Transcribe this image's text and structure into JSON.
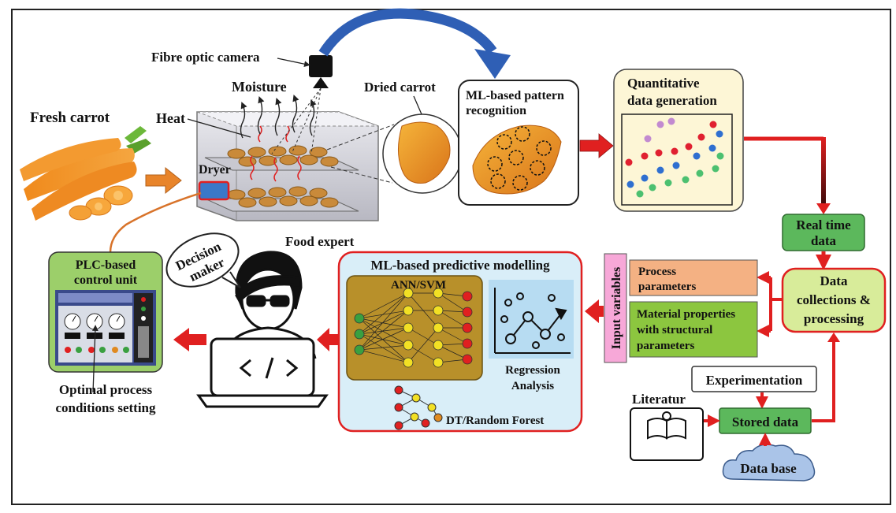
{
  "labels": {
    "fresh_carrot": "Fresh carrot",
    "heat": "Heat",
    "moisture": "Moisture",
    "fibre_optic_camera": "Fibre optic camera",
    "dried_carrot": "Dried carrot",
    "dryer": "Dryer",
    "ml_pattern_line1": "ML-based pattern",
    "ml_pattern_line2": "recognition",
    "quant_line1": "Quantitative",
    "quant_line2": "data generation",
    "realtime_line1": "Real time",
    "realtime_line2": "data",
    "datacoll_line1": "Data",
    "datacoll_line2": "collections &",
    "datacoll_line3": "processing",
    "input_variables": "Input variables",
    "process_line1": "Process",
    "process_line2": "parameters",
    "material_line1": "Material properties",
    "material_line2": "with structural",
    "material_line3": "parameters",
    "ml_predictive": "ML-based predictive modelling",
    "ann_svm": "ANN/SVM",
    "regression_line1": "Regression",
    "regression_line2": "Analysis",
    "dt_rf": "DT/Random Forest",
    "food_expert": "Food expert",
    "decision_line1": "Decision",
    "decision_line2": "maker",
    "plc_line1": "PLC-based",
    "plc_line2": "control unit",
    "optimal_line1": "Optimal process",
    "optimal_line2": "conditions setting",
    "experimentation": "Experimentation",
    "literatur": "Literatur",
    "stored_data": "Stored data",
    "data_base": "Data base"
  },
  "colors": {
    "red_arrow": "#e02020",
    "orange_arrow": "#e8842a",
    "blue_arrow": "#2f5fb5",
    "quant_fill": "#fdf6d6",
    "green_box": "#5cb85c",
    "datacoll_fill": "#d8ec9a",
    "process_fill": "#f4b183",
    "material_fill": "#8cc63f",
    "input_fill": "#f7a8d8",
    "predictive_fill": "#d9eef8",
    "ann_fill": "#b8902a",
    "regression_fill": "#b7dcf2",
    "plc_fill": "#9ccf6a",
    "cloud_fill": "#aac4e8"
  }
}
